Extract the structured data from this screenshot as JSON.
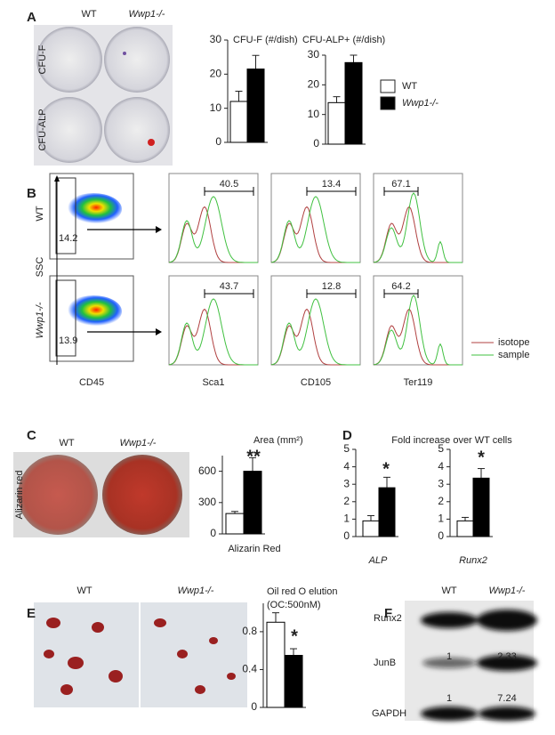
{
  "panels": [
    "A",
    "B",
    "C",
    "D",
    "E",
    "F"
  ],
  "genotypes": [
    "WT",
    "Wwp1-/-"
  ],
  "panel_a": {
    "rows": [
      "CFU-F",
      "CFU-ALP"
    ],
    "legend": [
      {
        "name": "WT",
        "color": "#ffffff"
      },
      {
        "name": "Wwp1-/-",
        "color": "#000000"
      }
    ]
  },
  "panel_b": {
    "rows": [
      "WT",
      "Wwp1-/-"
    ],
    "y_label": "SSC",
    "x_labels": [
      "CD45",
      "Sca1",
      "CD105",
      "Ter119"
    ],
    "gates": [
      [
        14.2,
        40.5,
        13.4,
        67.1
      ],
      [
        13.9,
        43.7,
        12.8,
        64.2
      ]
    ],
    "legend": [
      {
        "name": "isotope",
        "color": "#b04040"
      },
      {
        "name": "sample",
        "color": "#40c040"
      }
    ]
  },
  "panel_c": {
    "row": "Alizarin  red"
  },
  "panel_d": {
    "title": "Fold increase over WT cells"
  },
  "panel_f": {
    "rows": [
      "Runx2",
      "JunB",
      "GAPDH"
    ],
    "ratios": [
      [
        1,
        2.33
      ],
      [
        1,
        7.24
      ]
    ]
  },
  "chart_data": [
    {
      "type": "bar",
      "title": "CFU-F (#/dish)",
      "values": [
        12,
        21.5
      ],
      "errors": [
        3,
        4
      ],
      "colors": [
        "#ffffff",
        "#000000"
      ],
      "ylim": [
        0,
        30
      ],
      "yticks": [
        0,
        10,
        20,
        30
      ]
    },
    {
      "type": "bar",
      "title": "CFU-ALP+ (#/dish)",
      "values": [
        14,
        27.5
      ],
      "errors": [
        2,
        2.5
      ],
      "colors": [
        "#ffffff",
        "#000000"
      ],
      "ylim": [
        0,
        30
      ],
      "yticks": [
        0,
        10,
        20,
        30
      ]
    },
    {
      "type": "bar",
      "title": "Area (mm²)",
      "xlabel": "Alizarin Red",
      "annotation": "**",
      "values": [
        195,
        600
      ],
      "errors": [
        20,
        130
      ],
      "colors": [
        "#ffffff",
        "#000000"
      ],
      "ylim": [
        0,
        750
      ],
      "yticks": [
        0,
        300,
        600
      ]
    },
    {
      "type": "bar",
      "xlabel": "ALP",
      "annotation": "*",
      "values": [
        0.9,
        2.8
      ],
      "errors": [
        0.3,
        0.6
      ],
      "colors": [
        "#ffffff",
        "#000000"
      ],
      "ylim": [
        0,
        5
      ],
      "yticks": [
        0,
        1,
        2,
        3,
        4,
        5
      ]
    },
    {
      "type": "bar",
      "xlabel": "Runx2",
      "annotation": "*",
      "values": [
        0.9,
        3.35
      ],
      "errors": [
        0.2,
        0.55
      ],
      "colors": [
        "#ffffff",
        "#000000"
      ],
      "ylim": [
        0,
        5
      ],
      "yticks": [
        0,
        1,
        2,
        3,
        4,
        5
      ]
    },
    {
      "type": "bar",
      "title": "Oil red O elution",
      "subtitle": "(OC:500nM)",
      "annotation": "*",
      "values": [
        0.9,
        0.55
      ],
      "errors": [
        0.1,
        0.07
      ],
      "colors": [
        "#ffffff",
        "#000000"
      ],
      "ylim": [
        0,
        1.1
      ],
      "yticks": [
        0,
        0.4,
        0.8
      ]
    }
  ]
}
